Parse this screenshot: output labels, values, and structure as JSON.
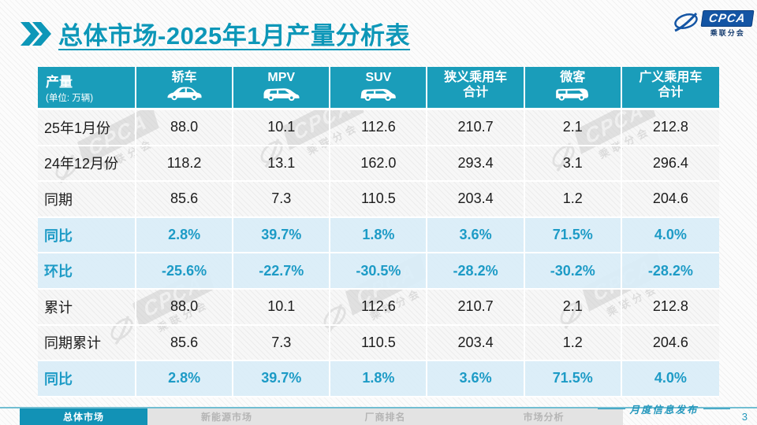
{
  "page": {
    "title_prefix": "总体市场",
    "title_rest": "-2025年1月产量分析表",
    "footer_note": "月度信息发布",
    "page_number": "3"
  },
  "logo": {
    "text": "CPCA",
    "subtext": "乘联分会"
  },
  "watermark": {
    "text": "CPCA",
    "subtext": "乘联分会"
  },
  "table": {
    "header": {
      "col0_title": "产量",
      "col0_unit": "(单位: 万辆)",
      "columns": [
        {
          "label": "轿车",
          "icon": "sedan-icon"
        },
        {
          "label": "MPV",
          "icon": "mpv-icon"
        },
        {
          "label": "SUV",
          "icon": "suv-icon"
        },
        {
          "label": "狭义乘用车",
          "label2": "合计"
        },
        {
          "label": "微客",
          "icon": "microvan-icon"
        },
        {
          "label": "广义乘用车",
          "label2": "合计"
        }
      ]
    },
    "rows": [
      {
        "label": "25年1月份",
        "highlight": false,
        "values": [
          "88.0",
          "10.1",
          "112.6",
          "210.7",
          "2.1",
          "212.8"
        ]
      },
      {
        "label": "24年12月份",
        "highlight": false,
        "values": [
          "118.2",
          "13.1",
          "162.0",
          "293.4",
          "3.1",
          "296.4"
        ]
      },
      {
        "label": "同期",
        "highlight": false,
        "values": [
          "85.6",
          "7.3",
          "110.5",
          "203.4",
          "1.2",
          "204.6"
        ]
      },
      {
        "label": "同比",
        "highlight": true,
        "values": [
          "2.8%",
          "39.7%",
          "1.8%",
          "3.6%",
          "71.5%",
          "4.0%"
        ]
      },
      {
        "label": "环比",
        "highlight": true,
        "values": [
          "-25.6%",
          "-22.7%",
          "-30.5%",
          "-28.2%",
          "-30.2%",
          "-28.2%"
        ]
      },
      {
        "label": "累计",
        "highlight": false,
        "values": [
          "88.0",
          "10.1",
          "112.6",
          "210.7",
          "2.1",
          "212.8"
        ]
      },
      {
        "label": "同期累计",
        "highlight": false,
        "values": [
          "85.6",
          "7.3",
          "110.5",
          "203.4",
          "1.2",
          "204.6"
        ]
      },
      {
        "label": "同比",
        "highlight": true,
        "values": [
          "2.8%",
          "39.7%",
          "1.8%",
          "3.6%",
          "71.5%",
          "4.0%"
        ]
      }
    ]
  },
  "footer_tabs": [
    {
      "label": "总体市场",
      "active": true
    },
    {
      "label": "新能源市场",
      "active": false
    },
    {
      "label": "厂商排名",
      "active": false
    },
    {
      "label": "市场分析",
      "active": false
    }
  ],
  "colors": {
    "teal_header": "#1A9DBA",
    "teal_title": "#0D97B8",
    "teal_percent": "#1D9BC6",
    "highlight_row_bg": "#D9EDF7",
    "logo_blue": "#1455A4"
  },
  "chart_data": {
    "type": "table",
    "title": "总体市场-2025年1月产量分析表",
    "unit": "万辆",
    "columns": [
      "产量",
      "轿车",
      "MPV",
      "SUV",
      "狭义乘用车合计",
      "微客",
      "广义乘用车合计"
    ],
    "rows": [
      [
        "25年1月份",
        88.0,
        10.1,
        112.6,
        210.7,
        2.1,
        212.8
      ],
      [
        "24年12月份",
        118.2,
        13.1,
        162.0,
        293.4,
        3.1,
        296.4
      ],
      [
        "同期",
        85.6,
        7.3,
        110.5,
        203.4,
        1.2,
        204.6
      ],
      [
        "同比",
        "2.8%",
        "39.7%",
        "1.8%",
        "3.6%",
        "71.5%",
        "4.0%"
      ],
      [
        "环比",
        "-25.6%",
        "-22.7%",
        "-30.5%",
        "-28.2%",
        "-30.2%",
        "-28.2%"
      ],
      [
        "累计",
        88.0,
        10.1,
        112.6,
        210.7,
        2.1,
        212.8
      ],
      [
        "同期累计",
        85.6,
        7.3,
        110.5,
        203.4,
        1.2,
        204.6
      ],
      [
        "同比",
        "2.8%",
        "39.7%",
        "1.8%",
        "3.6%",
        "71.5%",
        "4.0%"
      ]
    ]
  }
}
